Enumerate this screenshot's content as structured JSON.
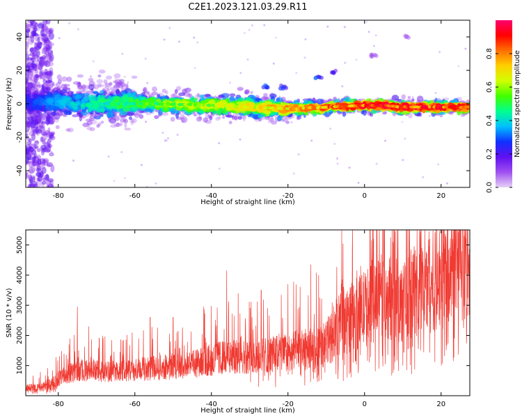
{
  "title": "C2E1.2023.121.03.29.R11",
  "colors": {
    "snr_line": "#f03a32",
    "axis": "#000000"
  },
  "chart_data": [
    {
      "type": "heatmap",
      "xlabel": "Height of straight line (km)",
      "ylabel": "Frequency (Hz)",
      "xlim": [
        -88.5,
        27.5
      ],
      "ylim": [
        -50,
        50
      ],
      "x_ticks": [
        -80,
        -60,
        -40,
        -20,
        0,
        20
      ],
      "y_ticks": [
        -40,
        -20,
        0,
        20,
        40
      ],
      "colorbar": {
        "label": "Normalized spectral amplitude",
        "range": [
          0,
          1
        ],
        "ticks": [
          0.0,
          0.2,
          0.4,
          0.6,
          0.8
        ],
        "colormap": [
          "#e6d2f6",
          "#a050f0",
          "#6010f0",
          "#1030ff",
          "#00c0ff",
          "#00ff90",
          "#40ff00",
          "#d0ff00",
          "#ffd000",
          "#ff7000",
          "#ff0000",
          "#ff0070"
        ]
      },
      "ridge": {
        "frequency_hz": [
          {
            "x": -85,
            "y": 1
          },
          {
            "x": -70,
            "y": 0
          },
          {
            "x": -55,
            "y": 0
          },
          {
            "x": -40,
            "y": -1
          },
          {
            "x": -30,
            "y": -2
          },
          {
            "x": -20,
            "y": -3
          },
          {
            "x": -10,
            "y": -2
          },
          {
            "x": 0,
            "y": -1
          },
          {
            "x": 5,
            "y": -1
          },
          {
            "x": 10,
            "y": -2
          },
          {
            "x": 20,
            "y": -2
          },
          {
            "x": 27.5,
            "y": -2
          }
        ],
        "amplitude": [
          {
            "x": -88.5,
            "y": 0.25
          },
          {
            "x": -80,
            "y": 0.35
          },
          {
            "x": -70,
            "y": 0.45
          },
          {
            "x": -60,
            "y": 0.5
          },
          {
            "x": -50,
            "y": 0.6
          },
          {
            "x": -40,
            "y": 0.62
          },
          {
            "x": -30,
            "y": 0.68
          },
          {
            "x": -20,
            "y": 0.75
          },
          {
            "x": -10,
            "y": 0.82
          },
          {
            "x": 0,
            "y": 0.88
          },
          {
            "x": 10,
            "y": 0.9
          },
          {
            "x": 20,
            "y": 0.88
          },
          {
            "x": 27.5,
            "y": 0.85
          }
        ]
      },
      "isolated_features": [
        {
          "x": -12,
          "y": 16,
          "amplitude": 0.3
        },
        {
          "x": -8,
          "y": 19,
          "amplitude": 0.2
        },
        {
          "x": -26,
          "y": 10,
          "amplitude": 0.3
        },
        {
          "x": -21,
          "y": 10,
          "amplitude": 0.25
        },
        {
          "x": 2,
          "y": 29,
          "amplitude": 0.1
        },
        {
          "x": 11,
          "y": 40,
          "amplitude": 0.08
        }
      ]
    },
    {
      "type": "line",
      "xlabel": "Height of straight line (km)",
      "ylabel": "SNR (10 * v/v)",
      "xlim": [
        -88.5,
        27.5
      ],
      "ylim": [
        0,
        5500
      ],
      "x_ticks": [
        -80,
        -60,
        -40,
        -20,
        0,
        20
      ],
      "y_ticks": [
        1000,
        2000,
        3000,
        4000,
        5000
      ],
      "series": [
        {
          "envelope": [
            {
              "x": -88.5,
              "y": 250
            },
            {
              "x": -85,
              "y": 300
            },
            {
              "x": -82,
              "y": 420
            },
            {
              "x": -78,
              "y": 700
            },
            {
              "x": -74,
              "y": 850
            },
            {
              "x": -68,
              "y": 800
            },
            {
              "x": -60,
              "y": 850
            },
            {
              "x": -52,
              "y": 950
            },
            {
              "x": -45,
              "y": 1050
            },
            {
              "x": -38,
              "y": 1250
            },
            {
              "x": -30,
              "y": 1300
            },
            {
              "x": -22,
              "y": 1400
            },
            {
              "x": -15,
              "y": 1550
            },
            {
              "x": -11,
              "y": 1600
            },
            {
              "x": -9,
              "y": 1900
            },
            {
              "x": -7,
              "y": 2300
            },
            {
              "x": -4,
              "y": 2550
            },
            {
              "x": -1,
              "y": 2800
            },
            {
              "x": 2,
              "y": 3050
            },
            {
              "x": 5,
              "y": 3300
            },
            {
              "x": 8,
              "y": 3200
            },
            {
              "x": 10,
              "y": 3000
            },
            {
              "x": 12,
              "y": 3400
            },
            {
              "x": 15,
              "y": 3600
            },
            {
              "x": 18,
              "y": 3800
            },
            {
              "x": 20,
              "y": 4000
            },
            {
              "x": 24,
              "y": 4400
            },
            {
              "x": 27.5,
              "y": 4600
            }
          ],
          "spikes": [
            {
              "x": -75,
              "y": 2950
            },
            {
              "x": -72,
              "y": 2300
            },
            {
              "x": -56,
              "y": 2600
            },
            {
              "x": -50,
              "y": 2600
            },
            {
              "x": -42,
              "y": 2950
            },
            {
              "x": -36,
              "y": 4150
            },
            {
              "x": -33,
              "y": 3400
            },
            {
              "x": -27,
              "y": 3500
            },
            {
              "x": -20,
              "y": 3700
            },
            {
              "x": -14,
              "y": 4350
            },
            {
              "x": -12,
              "y": 4000
            },
            {
              "x": -6,
              "y": 3500
            },
            {
              "x": -2,
              "y": 4150
            },
            {
              "x": 2,
              "y": 4500
            },
            {
              "x": 4,
              "y": 4200
            },
            {
              "x": 8,
              "y": 5450
            },
            {
              "x": 11,
              "y": 5100
            },
            {
              "x": 15,
              "y": 4900
            },
            {
              "x": 17,
              "y": 5200
            },
            {
              "x": 23,
              "y": 5200
            },
            {
              "x": 26,
              "y": 5300
            }
          ],
          "dips": [
            {
              "x": 10,
              "y": 1000
            },
            {
              "x": 11,
              "y": 850
            },
            {
              "x": 6,
              "y": 1900
            },
            {
              "x": -5,
              "y": 1700
            },
            {
              "x": 14,
              "y": 1900
            },
            {
              "x": 18,
              "y": 2200
            },
            {
              "x": -8,
              "y": 1300
            }
          ]
        }
      ]
    }
  ]
}
